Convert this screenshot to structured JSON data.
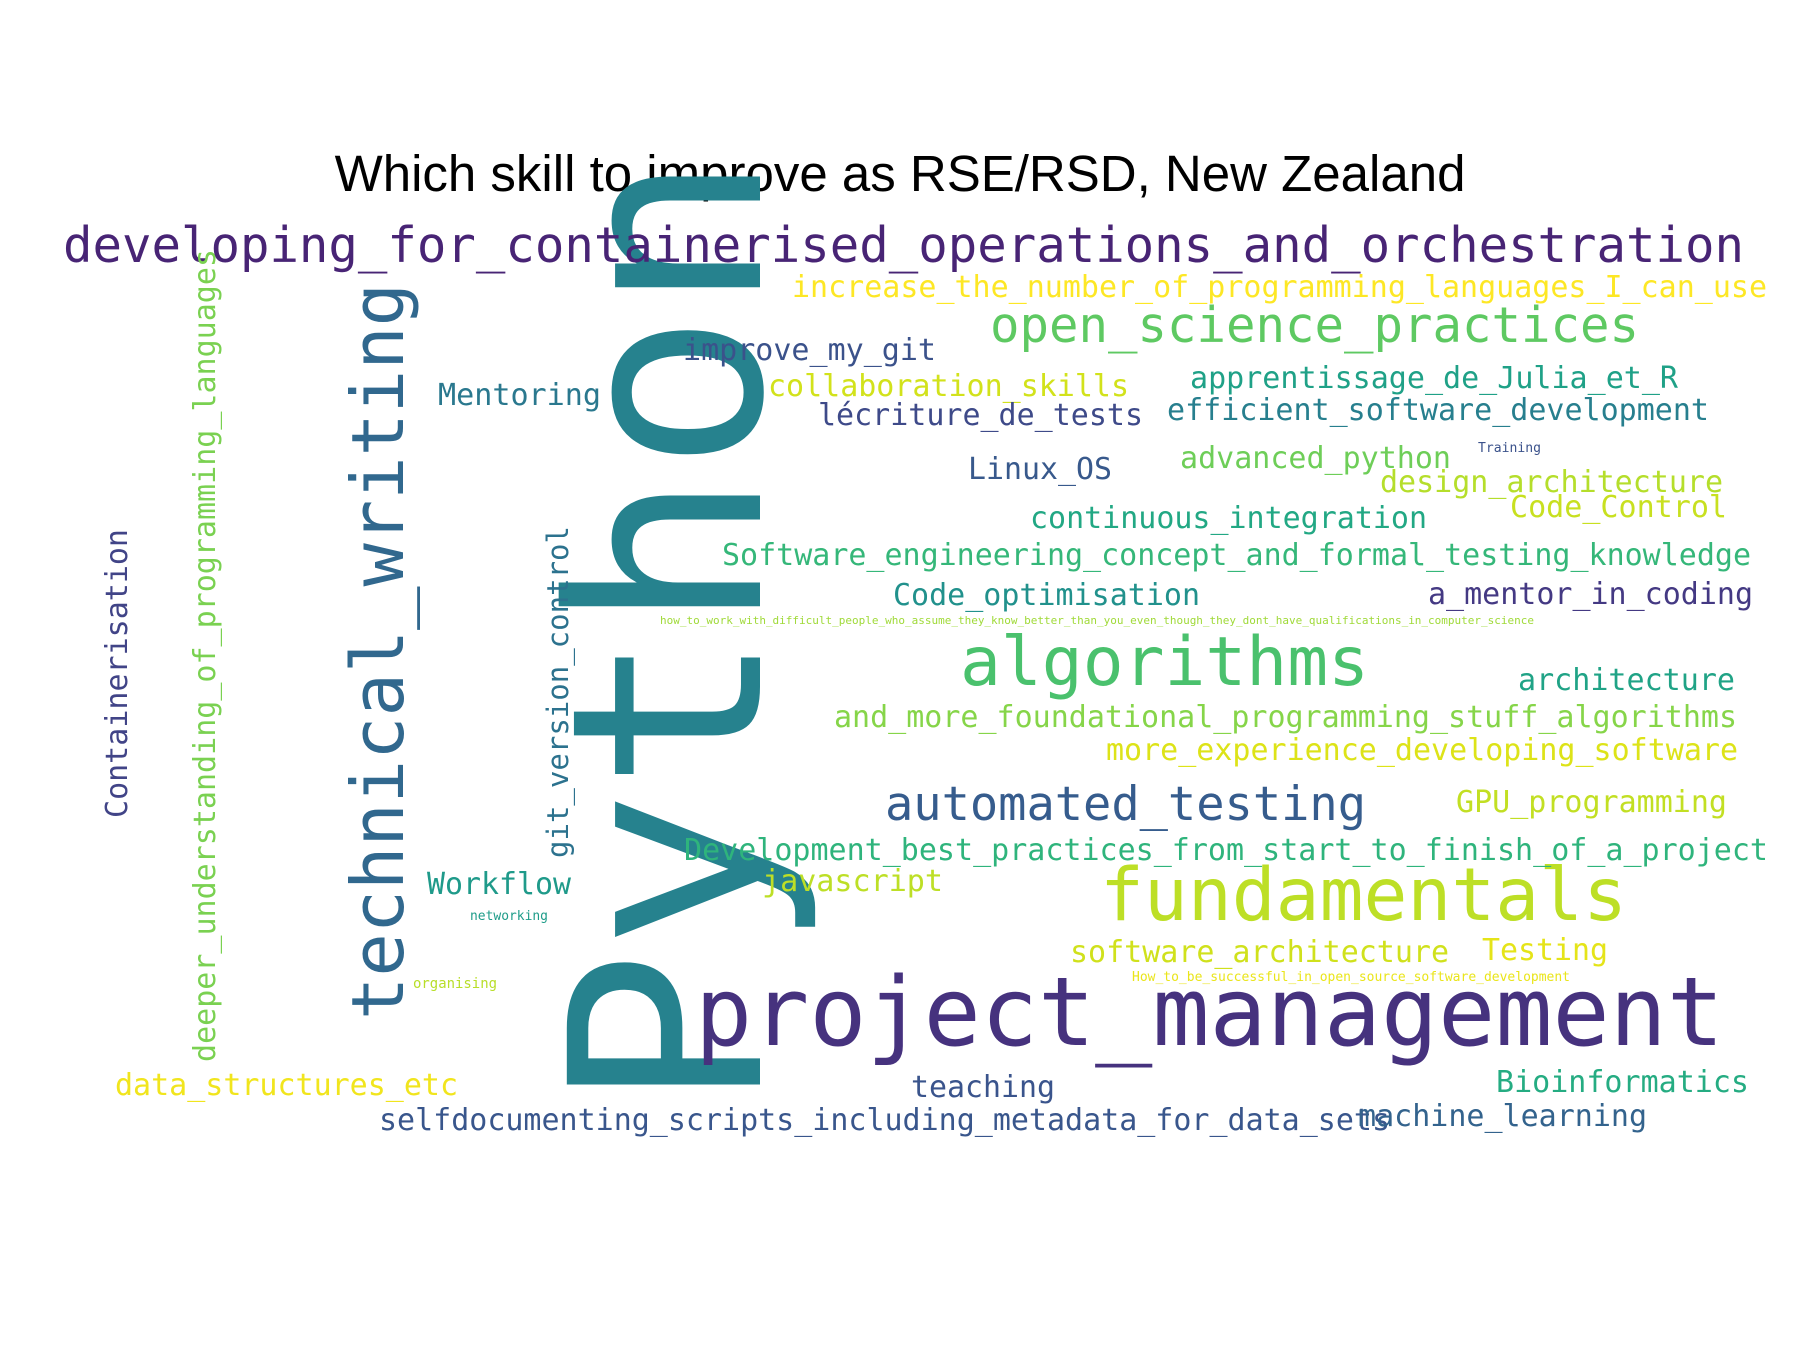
{
  "title": "Which skill to improve as RSE/RSD, New Zealand",
  "palette": "viridis",
  "words": [
    {
      "text": "Python",
      "color": "#26828e"
    },
    {
      "text": "project_management",
      "color": "#46327e"
    },
    {
      "text": "technical_writing",
      "color": "#31688e"
    },
    {
      "text": "developing_for_containerised_operations_and_orchestration",
      "color": "#482475"
    },
    {
      "text": "fundamentals",
      "color": "#bddf26"
    },
    {
      "text": "algorithms",
      "color": "#4ac16d"
    },
    {
      "text": "open_science_practices",
      "color": "#5ec962"
    },
    {
      "text": "automated_testing",
      "color": "#365c8d"
    },
    {
      "text": "increase_the_number_of_programming_languages_I_can_use",
      "color": "#fde725"
    },
    {
      "text": "deeper_understanding_of_programming_languages",
      "color": "#7ad151"
    },
    {
      "text": "Containerisation",
      "color": "#414487"
    },
    {
      "text": "git_version_control",
      "color": "#2c728e"
    },
    {
      "text": "improve_my_git",
      "color": "#3b528b"
    },
    {
      "text": "collaboration_skills",
      "color": "#d2e21b"
    },
    {
      "text": "Mentoring",
      "color": "#2a788e"
    },
    {
      "text": "apprentissage_de_Julia_et_R",
      "color": "#1fa187"
    },
    {
      "text": "lécriture_de_tests",
      "color": "#3e4a89"
    },
    {
      "text": "efficient_software_development",
      "color": "#277f8e"
    },
    {
      "text": "advanced_python",
      "color": "#6ece58"
    },
    {
      "text": "Training",
      "color": "#3b528b"
    },
    {
      "text": "Linux_OS",
      "color": "#38598c"
    },
    {
      "text": "design_architecture",
      "color": "#b5de2b"
    },
    {
      "text": "Code_Control",
      "color": "#c8e020"
    },
    {
      "text": "continuous_integration",
      "color": "#22a884"
    },
    {
      "text": "Software_engineering_concept_and_formal_testing_knowledge",
      "color": "#35b779"
    },
    {
      "text": "Code_optimisation",
      "color": "#21918c"
    },
    {
      "text": "a_mentor_in_coding",
      "color": "#443983"
    },
    {
      "text": "how_to_work_with_difficult_people_who_assume_they_know_better_than_you_even_though_they_dont_have_qualifications_in_computer_science",
      "color": "#a0da39"
    },
    {
      "text": "architecture",
      "color": "#20a386"
    },
    {
      "text": "and_more_foundational_programming_stuff_algorithms",
      "color": "#86d549"
    },
    {
      "text": "more_experience_developing_software",
      "color": "#dde318"
    },
    {
      "text": "GPU_programming",
      "color": "#c2df23"
    },
    {
      "text": "Development_best_practices_from_start_to_finish_of_a_project",
      "color": "#2fb47c"
    },
    {
      "text": "Workflow",
      "color": "#1f9a8a"
    },
    {
      "text": "javascript",
      "color": "#bddf26"
    },
    {
      "text": "networking",
      "color": "#1e9c89"
    },
    {
      "text": "software_architecture",
      "color": "#d0e11c"
    },
    {
      "text": "Testing",
      "color": "#e5e419"
    },
    {
      "text": "How_to_be_successful_in_open_source_software_development",
      "color": "#eae51a"
    },
    {
      "text": "organising",
      "color": "#b8de29"
    },
    {
      "text": "data_structures_etc",
      "color": "#f1e51d"
    },
    {
      "text": "teaching",
      "color": "#3a548c"
    },
    {
      "text": "Bioinformatics",
      "color": "#25ac82"
    },
    {
      "text": "selfdocumenting_scripts_including_metadata_for_data_sets",
      "color": "#39568c"
    },
    {
      "text": "machine_learning",
      "color": "#33638d"
    }
  ]
}
